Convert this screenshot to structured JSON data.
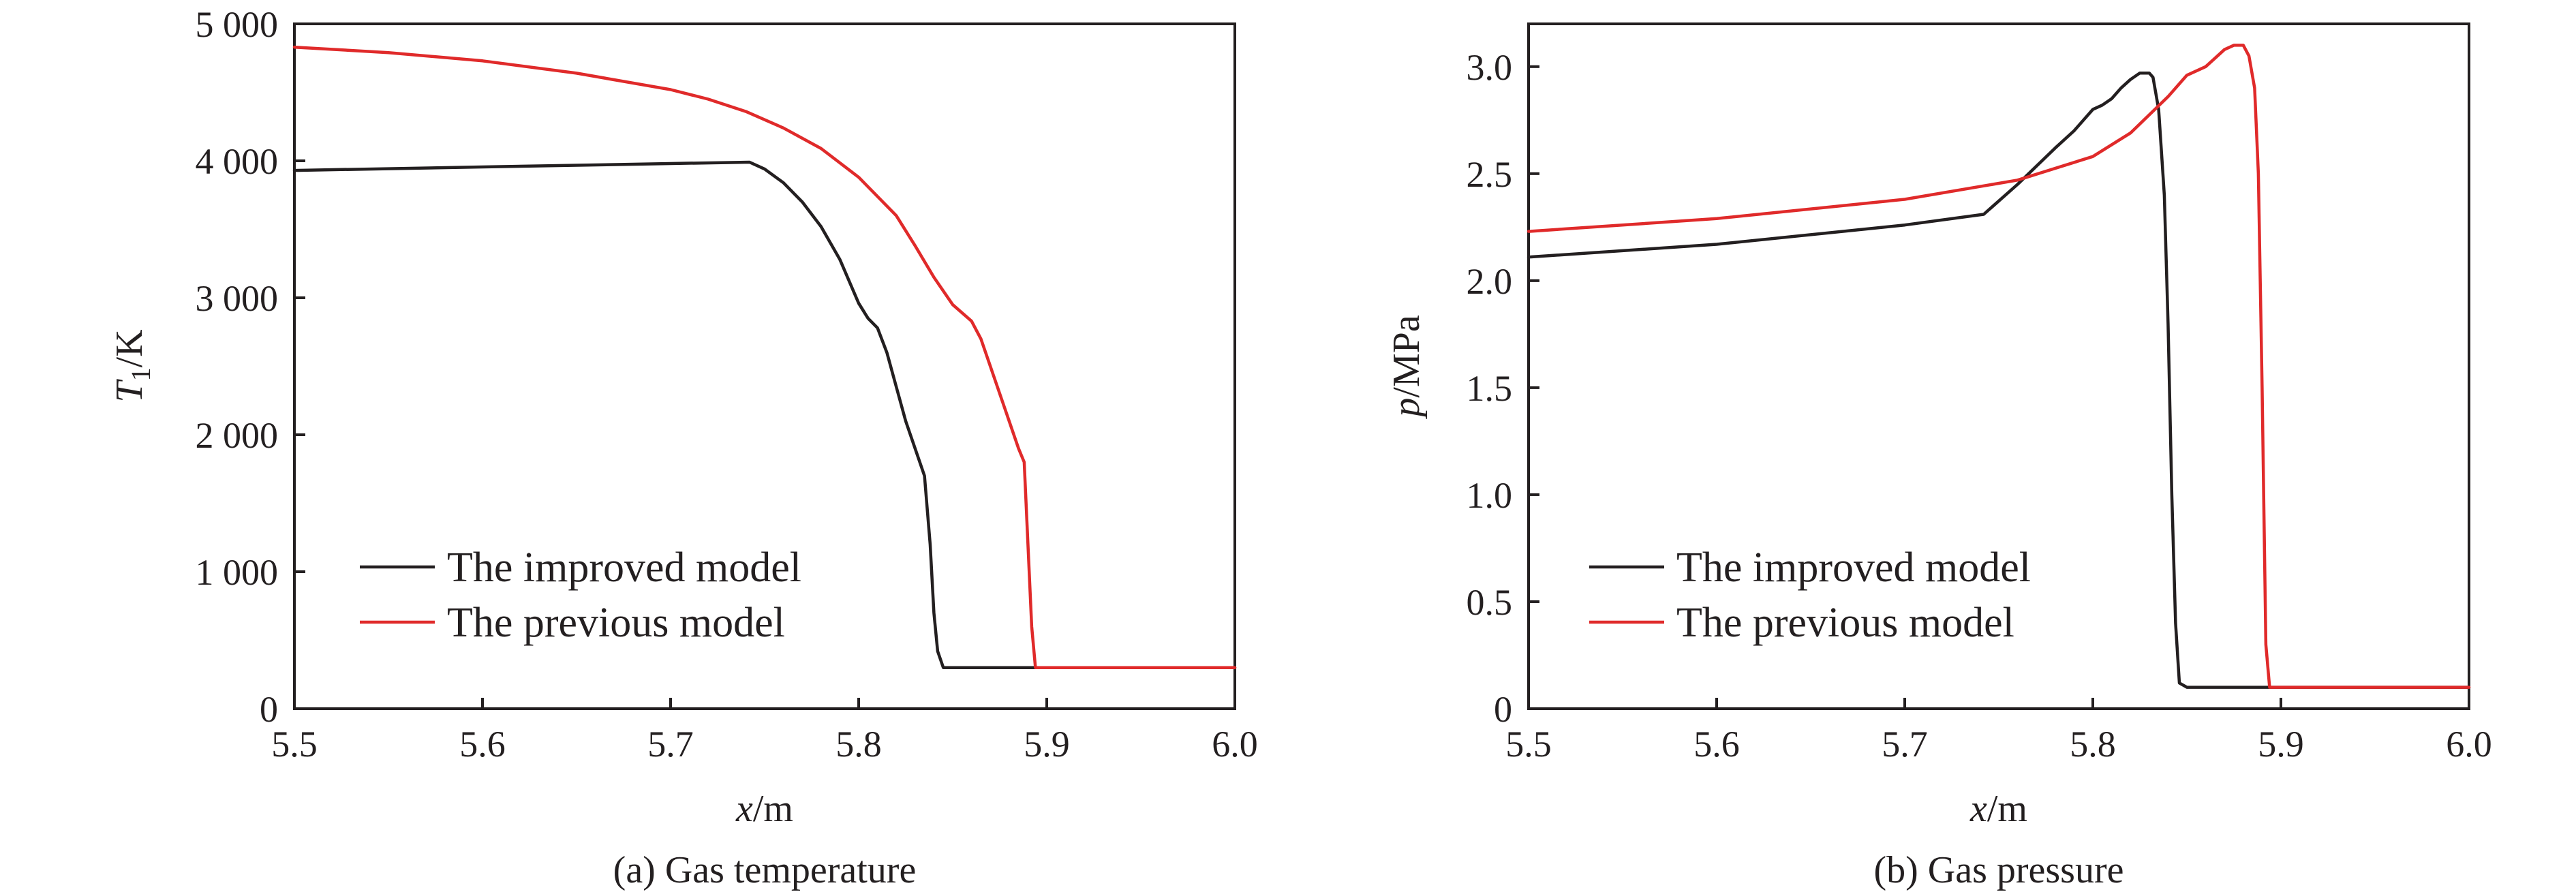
{
  "colors": {
    "improved": "#231f20",
    "previous": "#e02a2a"
  },
  "chart_data": [
    {
      "type": "line",
      "caption": "(a) Gas temperature",
      "xlabel_var": "x",
      "xlabel_unit": "/m",
      "ylabel_var": "T",
      "ylabel_sub": "1",
      "ylabel_unit": "/K",
      "xlim": [
        5.5,
        6.0
      ],
      "ylim": [
        0,
        5000
      ],
      "xticks": [
        5.5,
        5.6,
        5.7,
        5.8,
        5.9,
        6.0
      ],
      "xtick_labels": [
        "5.5",
        "5.6",
        "5.7",
        "5.8",
        "5.9",
        "6.0"
      ],
      "yticks": [
        0,
        1000,
        2000,
        3000,
        4000,
        5000
      ],
      "ytick_labels": [
        "0",
        "1 000",
        "2 000",
        "3 000",
        "4 000",
        "5 000"
      ],
      "legend_position": "lower-left",
      "series": [
        {
          "name": "The improved model",
          "color": "#231f20",
          "x": [
            5.5,
            5.6,
            5.7,
            5.742,
            5.75,
            5.76,
            5.77,
            5.78,
            5.79,
            5.8,
            5.805,
            5.81,
            5.815,
            5.82,
            5.825,
            5.83,
            5.835,
            5.838,
            5.84,
            5.842,
            5.845,
            5.85,
            5.9,
            6.0
          ],
          "y": [
            3930,
            3955,
            3980,
            3990,
            3940,
            3840,
            3700,
            3520,
            3280,
            2960,
            2850,
            2780,
            2600,
            2350,
            2100,
            1900,
            1700,
            1200,
            700,
            420,
            300,
            300,
            300,
            300
          ]
        },
        {
          "name": "The previous model",
          "color": "#e02a2a",
          "x": [
            5.5,
            5.55,
            5.6,
            5.65,
            5.7,
            5.72,
            5.74,
            5.76,
            5.78,
            5.8,
            5.82,
            5.83,
            5.84,
            5.85,
            5.86,
            5.865,
            5.87,
            5.875,
            5.88,
            5.885,
            5.888,
            5.89,
            5.892,
            5.894,
            5.895,
            5.9,
            6.0
          ],
          "y": [
            4830,
            4790,
            4730,
            4640,
            4520,
            4450,
            4360,
            4240,
            4090,
            3880,
            3600,
            3380,
            3150,
            2950,
            2830,
            2700,
            2500,
            2300,
            2100,
            1900,
            1800,
            1200,
            600,
            300,
            300,
            300,
            300
          ]
        }
      ]
    },
    {
      "type": "line",
      "caption": "(b) Gas pressure",
      "xlabel_var": "x",
      "xlabel_unit": "/m",
      "ylabel_var": "p",
      "ylabel_sub": "",
      "ylabel_unit": "/MPa",
      "xlim": [
        5.5,
        6.0
      ],
      "ylim": [
        0,
        3.2
      ],
      "xticks": [
        5.5,
        5.6,
        5.7,
        5.8,
        5.9,
        6.0
      ],
      "xtick_labels": [
        "5.5",
        "5.6",
        "5.7",
        "5.8",
        "5.9",
        "6.0"
      ],
      "yticks": [
        0,
        0.5,
        1.0,
        1.5,
        2.0,
        2.5,
        3.0
      ],
      "ytick_labels": [
        "0",
        "0.5",
        "1.0",
        "1.5",
        "2.0",
        "2.5",
        "3.0"
      ],
      "legend_position": "lower-left",
      "series": [
        {
          "name": "The improved model",
          "color": "#231f20",
          "x": [
            5.5,
            5.6,
            5.7,
            5.742,
            5.76,
            5.78,
            5.79,
            5.8,
            5.805,
            5.81,
            5.815,
            5.82,
            5.825,
            5.83,
            5.832,
            5.835,
            5.838,
            5.84,
            5.842,
            5.844,
            5.846,
            5.85,
            5.9,
            6.0
          ],
          "y": [
            2.11,
            2.17,
            2.26,
            2.31,
            2.45,
            2.62,
            2.7,
            2.8,
            2.82,
            2.85,
            2.9,
            2.94,
            2.97,
            2.97,
            2.95,
            2.8,
            2.4,
            1.8,
            1.0,
            0.4,
            0.12,
            0.1,
            0.1,
            0.1
          ]
        },
        {
          "name": "The previous model",
          "color": "#e02a2a",
          "x": [
            5.5,
            5.6,
            5.7,
            5.76,
            5.8,
            5.82,
            5.84,
            5.85,
            5.86,
            5.865,
            5.87,
            5.875,
            5.88,
            5.883,
            5.886,
            5.888,
            5.89,
            5.892,
            5.894,
            5.896,
            5.9,
            6.0
          ],
          "y": [
            2.23,
            2.29,
            2.38,
            2.47,
            2.58,
            2.69,
            2.86,
            2.96,
            3.0,
            3.04,
            3.08,
            3.1,
            3.1,
            3.05,
            2.9,
            2.5,
            1.5,
            0.3,
            0.1,
            0.1,
            0.1,
            0.1
          ]
        }
      ]
    }
  ]
}
